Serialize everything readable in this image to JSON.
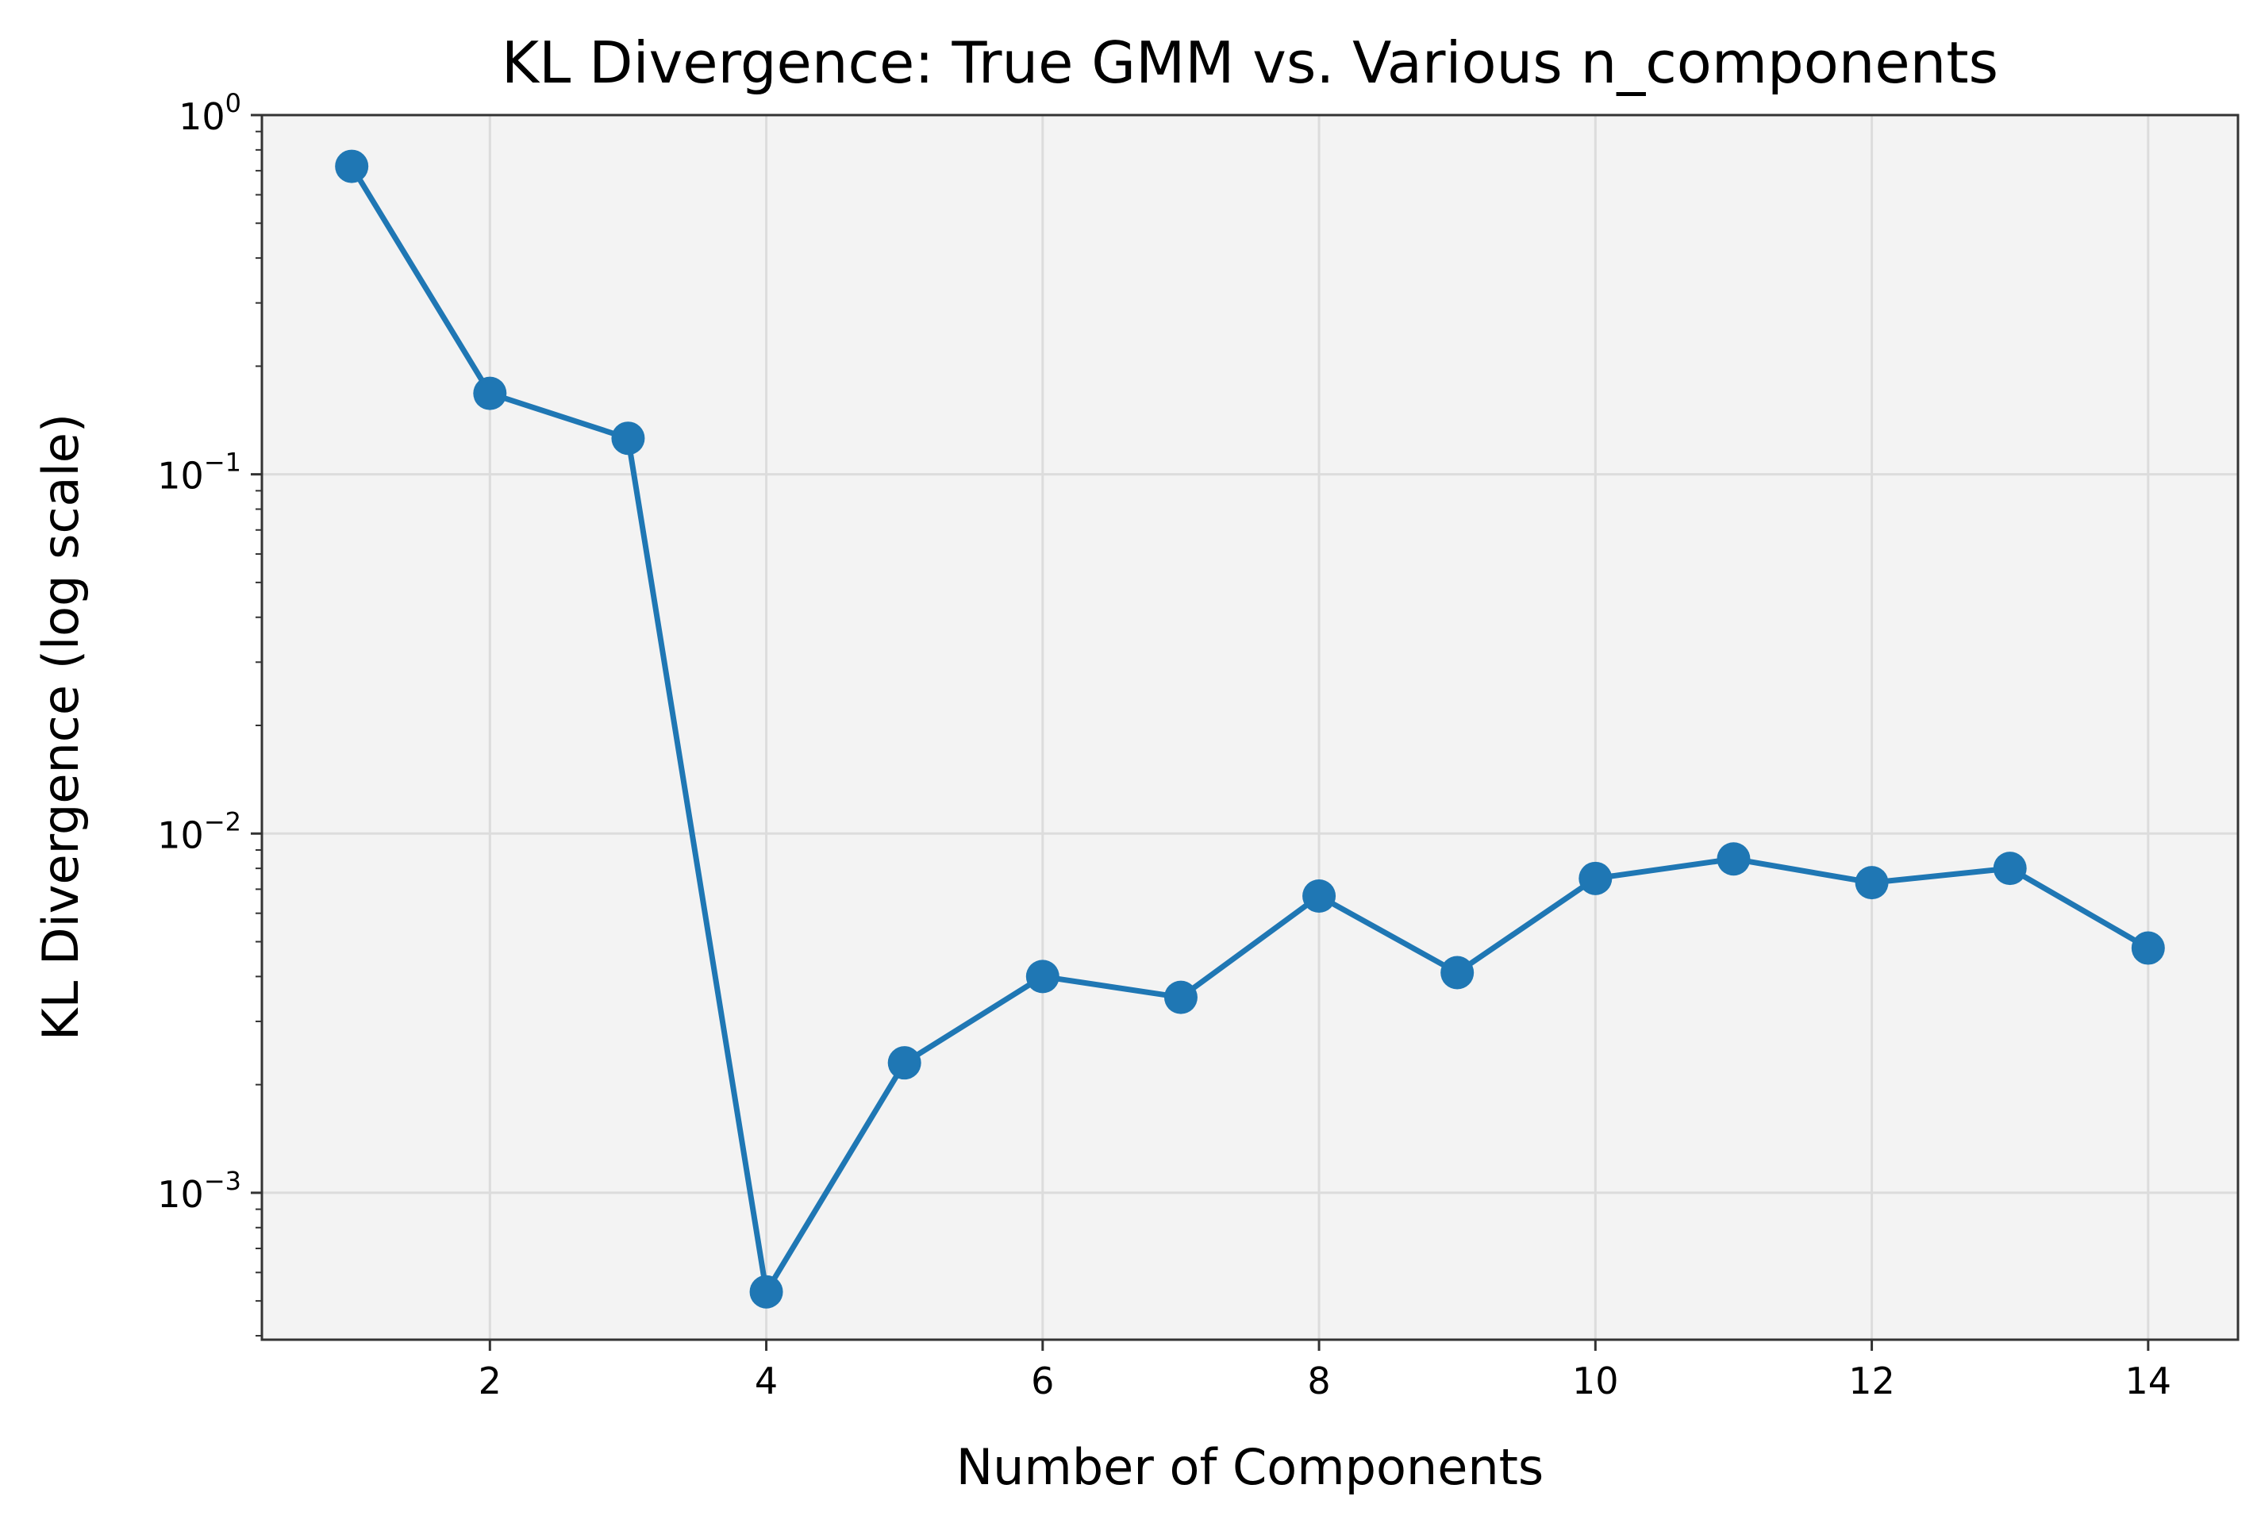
{
  "chart_data": {
    "type": "line",
    "title": "KL Divergence: True GMM vs. Various n_components",
    "xlabel": "Number of Components",
    "ylabel": "KL Divergence (log scale)",
    "yscale": "log",
    "xlim": [
      0.35,
      14.65
    ],
    "ylim": [
      0.00039,
      1.0
    ],
    "grid": true,
    "x_ticks": [
      2,
      4,
      6,
      8,
      10,
      12,
      14
    ],
    "y_ticks": [
      {
        "value": 1,
        "base": "10",
        "exp": "0"
      },
      {
        "value": 0.1,
        "base": "10",
        "exp": "−1"
      },
      {
        "value": 0.01,
        "base": "10",
        "exp": "−2"
      },
      {
        "value": 0.001,
        "base": "10",
        "exp": "−3"
      }
    ],
    "series": [
      {
        "color": "#1f77b4",
        "x": [
          1,
          2,
          3,
          4,
          5,
          6,
          7,
          8,
          9,
          10,
          11,
          12,
          13,
          14
        ],
        "y": [
          0.72,
          0.168,
          0.126,
          0.00053,
          0.0023,
          0.004,
          0.0035,
          0.0067,
          0.0041,
          0.0075,
          0.0085,
          0.0073,
          0.008,
          0.0048
        ]
      }
    ]
  },
  "colors": {
    "line": "#1f77b4",
    "plot_background": "#f3f3f3",
    "grid": "#dcdcdc",
    "axes": "#333333"
  }
}
